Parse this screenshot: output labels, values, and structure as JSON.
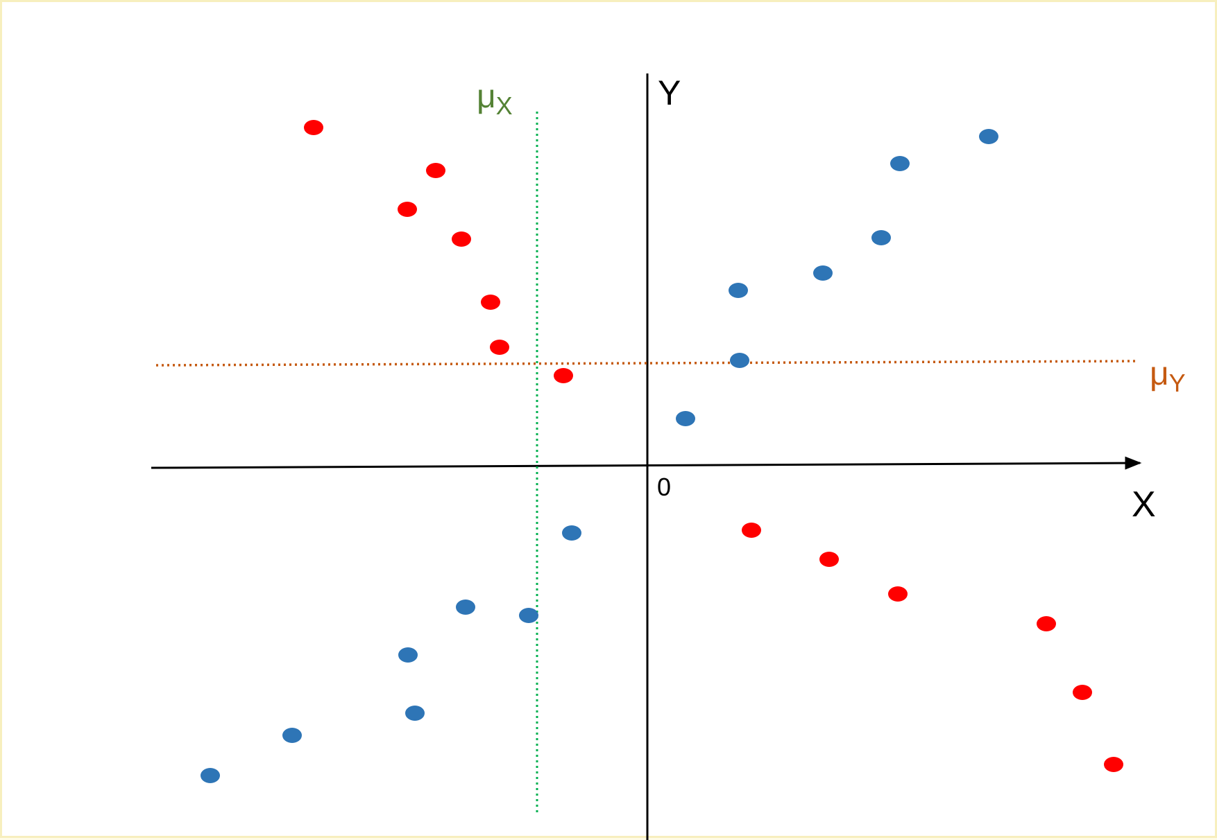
{
  "diagram": {
    "x_axis_label": "X",
    "y_axis_label": "Y",
    "origin_label": "0",
    "mean_x": {
      "symbol": "μ",
      "subscript": "X",
      "color": "#548235"
    },
    "mean_y": {
      "symbol": "μ",
      "subscript": "Y",
      "color": "#c55a11"
    },
    "mean_x_line_color": "#00b050",
    "mean_y_line_color": "#c55a11",
    "axis_color": "#000000",
    "point_colors": {
      "red": "#ff0000",
      "blue": "#2e75b6"
    }
  },
  "chart_data": {
    "type": "scatter",
    "xlabel": "X",
    "ylabel": "Y",
    "x_range": [
      -700,
      700
    ],
    "y_range": [
      -530,
      500
    ],
    "mean_x": -155,
    "mean_y": 148,
    "series": [
      {
        "color": "red",
        "x": [
          -481,
          -305,
          -346,
          -268,
          -226,
          -213,
          -121,
          150,
          262,
          361,
          575,
          627,
          672
        ],
        "y": [
          488,
          426,
          370,
          327,
          236,
          171,
          130,
          -93,
          -135,
          -185,
          -228,
          -327,
          -431
        ]
      },
      {
        "color": "blue",
        "x": [
          492,
          364,
          337,
          253,
          131,
          133,
          55,
          -109,
          -262,
          -171,
          -345,
          -335,
          -512,
          -630
        ],
        "y": [
          475,
          436,
          329,
          278,
          253,
          152,
          68,
          -97,
          -204,
          -216,
          -273,
          -357,
          -389,
          -447
        ]
      }
    ]
  }
}
